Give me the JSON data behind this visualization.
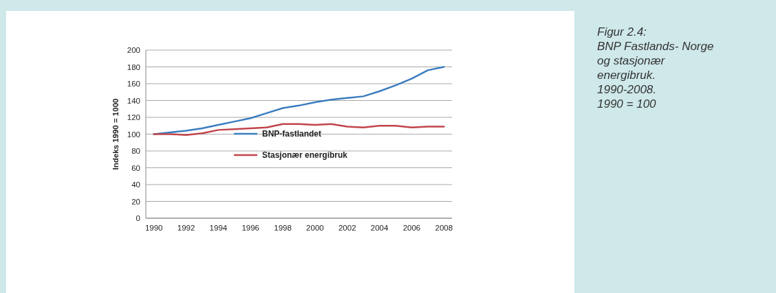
{
  "chart_data": {
    "type": "line",
    "title": "Figur 2.4:\nBNP Fastlands- Norge\nog stasjonær\nenergibruk.\n1990-2008.\n1990 = 100",
    "ylabel": "Indeks 1990 = 1000",
    "x": [
      1990,
      1991,
      1992,
      1993,
      1994,
      1995,
      1996,
      1997,
      1998,
      1999,
      2000,
      2001,
      2002,
      2003,
      2004,
      2005,
      2006,
      2007,
      2008
    ],
    "xlim": [
      1989.5,
      2008.5
    ],
    "xticks": [
      1990,
      1992,
      1994,
      1996,
      1998,
      2000,
      2002,
      2004,
      2006,
      2008
    ],
    "ylim": [
      0,
      200
    ],
    "yticks": [
      0,
      20,
      40,
      60,
      80,
      100,
      120,
      140,
      160,
      180,
      200
    ],
    "grid": "y",
    "legend": "center",
    "marker": "none",
    "line_style": "solid",
    "series": [
      {
        "name": "BNP-fastlandet",
        "color": "#3a7cc0",
        "values": [
          100,
          102,
          104,
          107,
          111,
          115,
          119,
          125,
          131,
          134,
          138,
          141,
          143,
          145,
          151,
          158,
          166,
          176,
          180
        ]
      },
      {
        "name": "Stasjonær energibruk",
        "color": "#c0444a",
        "values": [
          100,
          100,
          99,
          101,
          105,
          106,
          107,
          108,
          112,
          112,
          111,
          112,
          109,
          108,
          110,
          110,
          108,
          109,
          109
        ]
      }
    ]
  }
}
